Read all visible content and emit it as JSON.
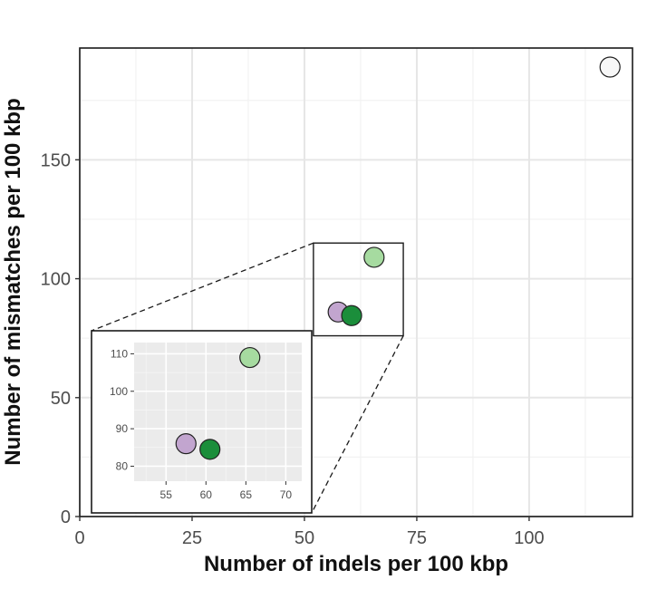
{
  "chart_data": [
    {
      "type": "scatter",
      "xlabel": "Number of indels per 100 kbp",
      "ylabel": "Number of mismatches per 100 kbp",
      "xlim": [
        0,
        123
      ],
      "ylim": [
        0,
        197
      ],
      "x_ticks": [
        0,
        25,
        50,
        75,
        100
      ],
      "y_ticks": [
        0,
        50,
        100,
        150
      ],
      "grid": true,
      "points": [
        {
          "x": 118,
          "y": 189,
          "color": "#f7f7f7"
        },
        {
          "x": 65.5,
          "y": 109,
          "color": "#a6dba0"
        },
        {
          "x": 57.5,
          "y": 86,
          "color": "#c2a5cf"
        },
        {
          "x": 60.5,
          "y": 84.5,
          "color": "#1b8e3b"
        }
      ],
      "zoom_box": {
        "x": [
          52,
          72
        ],
        "y": [
          76,
          115
        ]
      }
    },
    {
      "type": "scatter",
      "role": "inset",
      "xlim": [
        51,
        72
      ],
      "ylim": [
        76,
        113
      ],
      "x_ticks": [
        55,
        60,
        65,
        70
      ],
      "y_ticks": [
        80,
        90,
        100,
        110
      ],
      "grid": true,
      "points": [
        {
          "x": 65.5,
          "y": 109,
          "color": "#a6dba0"
        },
        {
          "x": 57.5,
          "y": 86,
          "color": "#c2a5cf"
        },
        {
          "x": 60.5,
          "y": 84.5,
          "color": "#1b8e3b"
        }
      ]
    }
  ]
}
